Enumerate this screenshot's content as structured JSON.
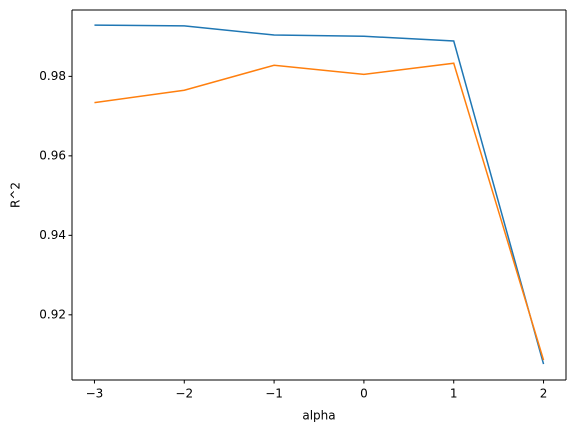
{
  "chart_data": {
    "type": "line",
    "x_label": "alpha",
    "y_label": "R^2",
    "x": [
      -3,
      -2,
      -1,
      0,
      1,
      2
    ],
    "series": [
      {
        "color": "#1f77b4",
        "values": [
          0.9929,
          0.9927,
          0.9904,
          0.9901,
          0.9889,
          0.9076
        ]
      },
      {
        "color": "#ff7f0e",
        "values": [
          0.9734,
          0.9765,
          0.9828,
          0.9805,
          0.9833,
          0.9086
        ]
      }
    ],
    "xlim": [
      -3.25,
      2.25
    ],
    "xticks": [
      {
        "value": -3,
        "label": "−3"
      },
      {
        "value": -2,
        "label": "−2"
      },
      {
        "value": -1,
        "label": "−1"
      },
      0,
      1,
      2
    ],
    "ylim": [
      0.9036,
      0.9967
    ],
    "yticks": [
      0.92,
      0.94,
      0.96,
      0.98
    ],
    "grid": false
  }
}
